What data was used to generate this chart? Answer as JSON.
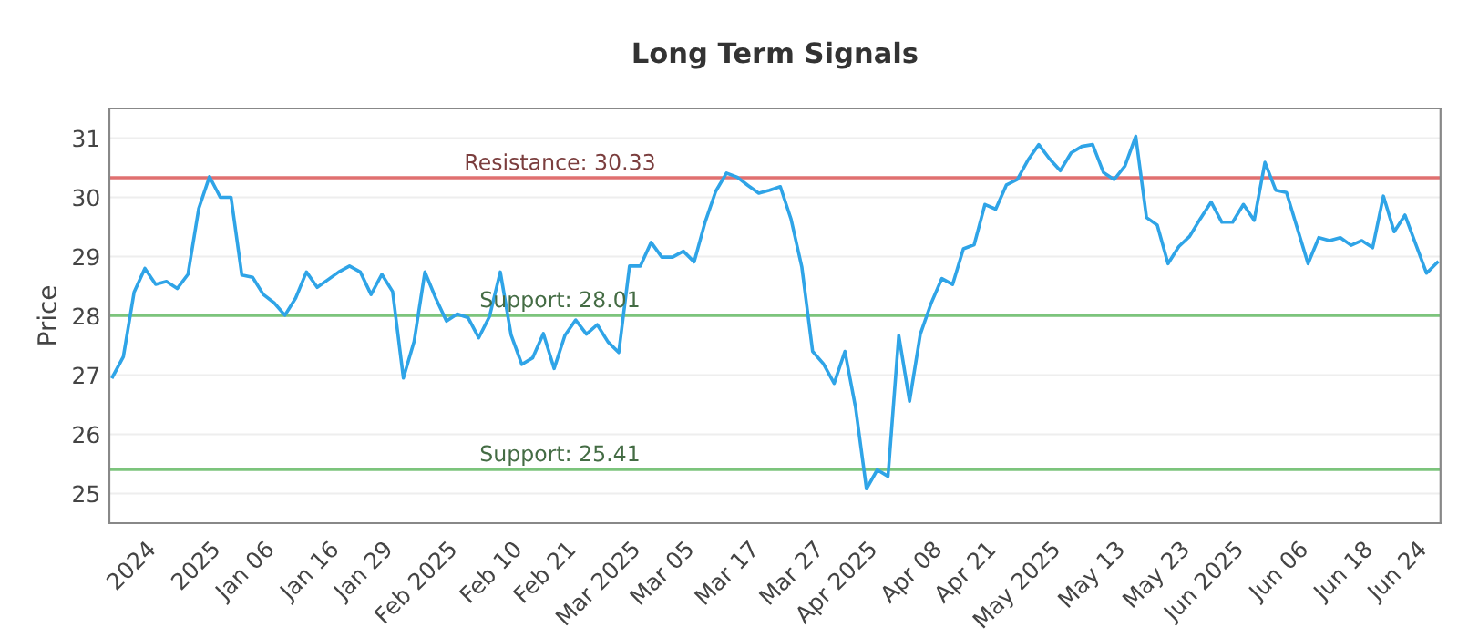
{
  "chart_data": {
    "type": "line",
    "title": "Long Term Signals",
    "ylabel": "Price",
    "categories": [
      null,
      null,
      null,
      "2024",
      null,
      null,
      null,
      null,
      null,
      "2025",
      null,
      null,
      null,
      null,
      "Jan 06",
      null,
      null,
      null,
      null,
      null,
      "Jan 16",
      null,
      null,
      null,
      null,
      "Jan 29",
      null,
      null,
      null,
      null,
      null,
      "Feb 2025",
      null,
      null,
      null,
      null,
      null,
      "Feb 10",
      null,
      null,
      null,
      null,
      "Feb 21",
      null,
      null,
      null,
      null,
      null,
      "Mar 2025",
      null,
      null,
      null,
      null,
      "Mar 05",
      null,
      null,
      null,
      null,
      null,
      "Mar 17",
      null,
      null,
      null,
      null,
      null,
      "Mar 27",
      null,
      null,
      null,
      null,
      "Apr 2025",
      null,
      null,
      null,
      null,
      null,
      "Apr 08",
      null,
      null,
      null,
      null,
      "Apr 21",
      null,
      null,
      null,
      null,
      null,
      "May 2025",
      null,
      null,
      null,
      null,
      null,
      "May 13",
      null,
      null,
      null,
      null,
      null,
      "May 23",
      null,
      null,
      null,
      null,
      "Jun 2025",
      null,
      null,
      null,
      null,
      null,
      "Jun 06",
      null,
      null,
      null,
      null,
      null,
      "Jun 18",
      null,
      null,
      null,
      null,
      "Jun 24",
      null,
      null
    ],
    "series": [
      {
        "color": "#2fa4e7",
        "values": [
          26.97,
          27.31,
          28.4,
          28.8,
          28.53,
          28.58,
          28.46,
          28.7,
          29.81,
          30.35,
          30.0,
          30.0,
          28.69,
          28.65,
          28.36,
          28.22,
          28.01,
          28.3,
          28.74,
          28.48,
          28.61,
          28.74,
          28.84,
          28.74,
          28.36,
          28.7,
          28.41,
          26.95,
          27.57,
          28.74,
          28.3,
          27.91,
          28.03,
          27.97,
          27.63,
          27.99,
          28.74,
          27.68,
          27.18,
          27.29,
          27.7,
          27.11,
          27.67,
          27.93,
          27.69,
          27.85,
          27.56,
          27.38,
          28.84,
          28.84,
          29.24,
          28.99,
          28.99,
          29.09,
          28.91,
          29.57,
          30.1,
          30.41,
          30.34,
          30.2,
          30.07,
          30.12,
          30.18,
          29.63,
          28.82,
          27.4,
          27.19,
          26.86,
          27.4,
          26.44,
          25.08,
          25.4,
          25.29,
          27.67,
          26.56,
          27.69,
          28.21,
          28.63,
          28.53,
          29.13,
          29.2,
          29.88,
          29.8,
          30.21,
          30.3,
          30.63,
          30.89,
          30.65,
          30.45,
          30.75,
          30.86,
          30.89,
          30.42,
          30.3,
          30.53,
          31.03,
          29.66,
          29.53,
          28.88,
          29.17,
          29.34,
          29.64,
          29.92,
          29.58,
          29.58,
          29.88,
          29.61,
          30.59,
          30.12,
          30.08,
          29.48,
          28.88,
          29.32,
          29.27,
          29.32,
          29.19,
          29.27,
          29.15,
          30.02,
          29.42,
          29.7,
          29.21,
          28.72,
          28.9
        ]
      }
    ],
    "ylim": [
      24.5,
      31.5
    ],
    "yticks": [
      25,
      26,
      27,
      28,
      29,
      30,
      31
    ],
    "grid": "y",
    "legend": false,
    "marker": "none",
    "line_style": "solid",
    "ref_lines": [
      {
        "axis": "y",
        "value": 30.33,
        "label": "Resistance: 30.33",
        "color": "#e07070"
      },
      {
        "axis": "y",
        "value": 28.01,
        "label": "Support: 28.01",
        "color": "#7cc47c"
      },
      {
        "axis": "y",
        "value": 25.41,
        "label": "Support: 25.41",
        "color": "#7cc47c"
      }
    ]
  }
}
